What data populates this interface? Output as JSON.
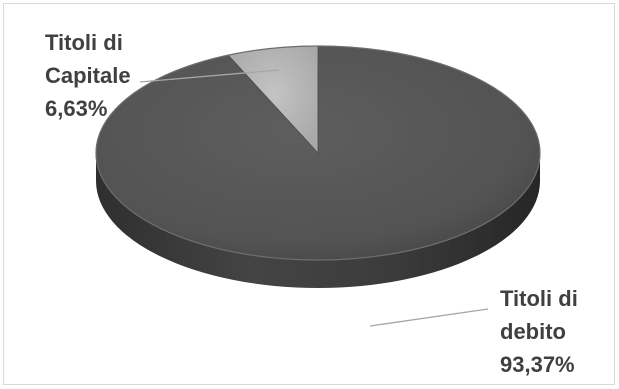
{
  "chart_data": {
    "type": "pie",
    "style": "3d",
    "title": "",
    "slices": [
      {
        "label_lines": [
          "Titoli di",
          "Capitale"
        ],
        "value_label": "6,63%",
        "value": 6.63,
        "color": "#b0b0b0"
      },
      {
        "label_lines": [
          "Titoli di",
          "debito"
        ],
        "value_label": "93,37%",
        "value": 93.37,
        "color": "#555555"
      }
    ],
    "legend": "none",
    "data_labels": "outside-with-leader-lines"
  },
  "colors": {
    "border": "#d9d9d9",
    "label_text": "#404040",
    "leader_line": "#a6a6a6"
  }
}
